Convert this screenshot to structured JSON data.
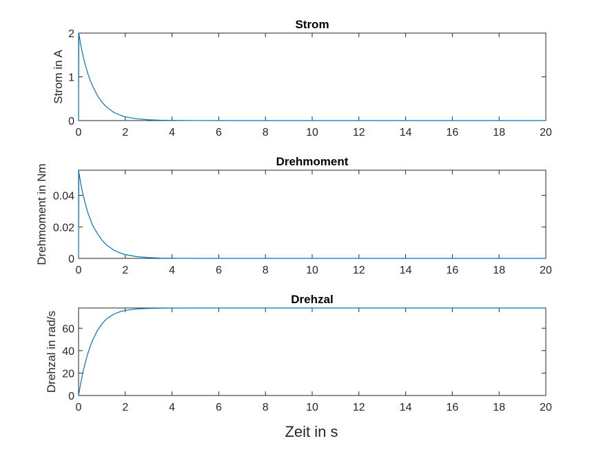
{
  "figure": {
    "xlabel": "Zeit in s",
    "line_color": "#0072bd",
    "axis_color": "#262626"
  },
  "chart_data": [
    {
      "type": "line",
      "title": "Strom",
      "ylabel": "Strom in A",
      "xlim": [
        0,
        20
      ],
      "ylim": [
        0,
        2
      ],
      "xticks": [
        0,
        2,
        4,
        6,
        8,
        10,
        12,
        14,
        16,
        18,
        20
      ],
      "yticks": [
        0,
        1,
        2
      ],
      "ytick_labels": [
        "0",
        "1",
        "2"
      ],
      "grid": false,
      "series": [
        {
          "color": "#0072bd",
          "x": [
            0,
            0.01,
            0.1,
            0.2,
            0.3,
            0.4,
            0.5,
            0.6,
            0.8,
            1.0,
            1.2,
            1.5,
            1.8,
            2.0,
            2.5,
            3.0,
            3.5,
            4.0,
            5.0,
            6.0,
            8.0,
            10.0,
            12.0,
            14.0,
            16.0,
            18.0,
            20.0
          ],
          "y": [
            0,
            2.0,
            1.71,
            1.46,
            1.25,
            1.07,
            0.92,
            0.79,
            0.58,
            0.42,
            0.31,
            0.19,
            0.12,
            0.086,
            0.04,
            0.018,
            0.008,
            0.004,
            0.001,
            0,
            0,
            0,
            0,
            0,
            0,
            0,
            0
          ]
        }
      ]
    },
    {
      "type": "line",
      "title": "Drehmoment",
      "ylabel": "Drehmoment in Nm",
      "xlim": [
        0,
        20
      ],
      "ylim": [
        0,
        0.056
      ],
      "xticks": [
        0,
        2,
        4,
        6,
        8,
        10,
        12,
        14,
        16,
        18,
        20
      ],
      "yticks": [
        0,
        0.02,
        0.04
      ],
      "ytick_labels": [
        "0",
        "0.02",
        "0.04"
      ],
      "grid": false,
      "series": [
        {
          "color": "#0072bd",
          "x": [
            0,
            0.01,
            0.1,
            0.2,
            0.3,
            0.4,
            0.5,
            0.6,
            0.8,
            1.0,
            1.2,
            1.5,
            1.8,
            2.0,
            2.5,
            3.0,
            3.5,
            4.0,
            5.0,
            6.0,
            8.0,
            10.0,
            12.0,
            14.0,
            16.0,
            18.0,
            20.0
          ],
          "y": [
            0,
            0.055,
            0.047,
            0.04,
            0.034,
            0.029,
            0.025,
            0.021,
            0.016,
            0.0116,
            0.0085,
            0.0053,
            0.0033,
            0.0024,
            0.0011,
            0.0005,
            0.0002,
            0.0001,
            0,
            0,
            0,
            0,
            0,
            0,
            0,
            0,
            0
          ]
        }
      ]
    },
    {
      "type": "line",
      "title": "Drehzal",
      "ylabel": "Drehzal in rad/s",
      "xlim": [
        0,
        20
      ],
      "ylim": [
        0,
        78
      ],
      "xticks": [
        0,
        2,
        4,
        6,
        8,
        10,
        12,
        14,
        16,
        18,
        20
      ],
      "yticks": [
        0,
        20,
        40,
        60
      ],
      "ytick_labels": [
        "0",
        "20",
        "40",
        "60"
      ],
      "grid": false,
      "series": [
        {
          "color": "#0072bd",
          "x": [
            0,
            0.1,
            0.2,
            0.3,
            0.4,
            0.5,
            0.6,
            0.8,
            1.0,
            1.2,
            1.5,
            1.8,
            2.0,
            2.5,
            3.0,
            3.5,
            4.0,
            5.0,
            6.0,
            8.0,
            10.0,
            12.0,
            14.0,
            16.0,
            18.0,
            20.0
          ],
          "y": [
            0,
            11.7,
            21.7,
            30.3,
            37.6,
            43.8,
            49.2,
            57.7,
            63.8,
            68.4,
            72.4,
            74.9,
            75.8,
            77.2,
            77.6,
            77.8,
            77.9,
            78,
            78,
            78,
            78,
            78,
            78,
            78,
            78,
            78
          ]
        }
      ]
    }
  ]
}
